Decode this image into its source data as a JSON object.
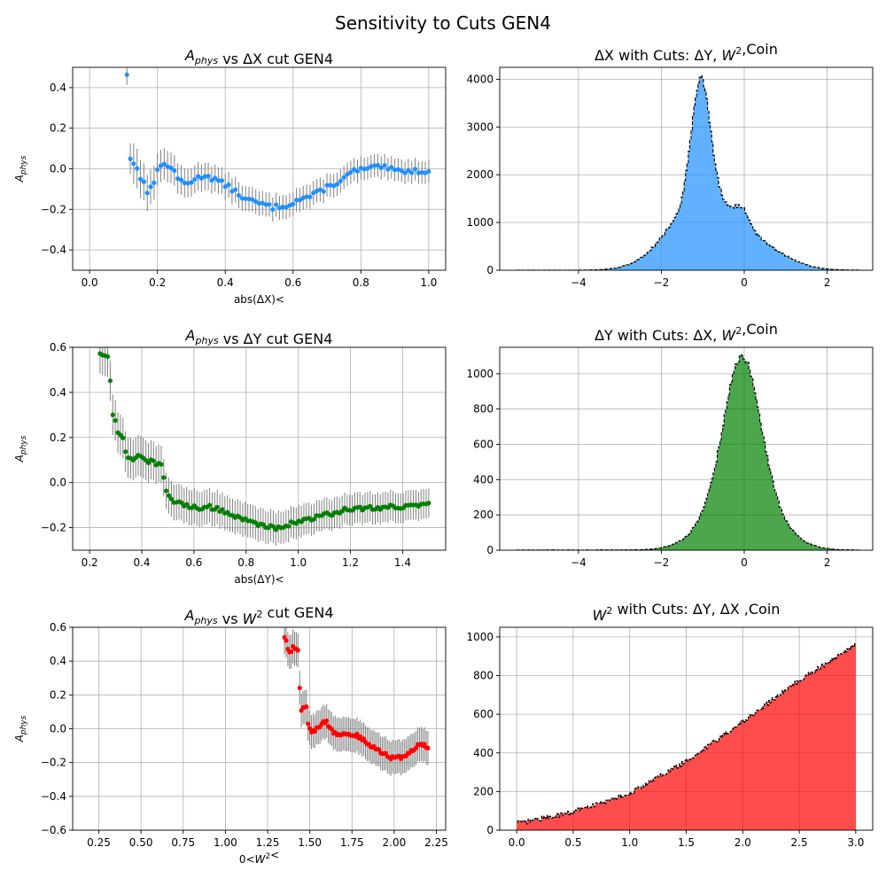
{
  "figure": {
    "title": "Sensitivity to Cuts GEN4"
  },
  "chart_data": [
    {
      "id": "aphys-vs-dx",
      "type": "scatter",
      "title": "A_phys vs ΔX cut GEN4",
      "xlabel": "abs(ΔX)<",
      "ylabel": "A_phys",
      "xlim": [
        -0.05,
        1.05
      ],
      "ylim": [
        -0.5,
        0.5
      ],
      "xticks": [
        0.0,
        0.2,
        0.4,
        0.6,
        0.8,
        1.0
      ],
      "xtick_labels": [
        "0.0",
        "0.2",
        "0.4",
        "0.6",
        "0.8",
        "1.0"
      ],
      "yticks": [
        -0.4,
        -0.2,
        0.0,
        0.2,
        0.4
      ],
      "ytick_labels": [
        "−0.4",
        "−0.2",
        "0.0",
        "0.2",
        "0.4"
      ],
      "grid": true,
      "color": "#1e90ff",
      "errorbar_color": "#808080",
      "x_range": [
        0.11,
        1.0
      ],
      "n_points": 90,
      "y_knots": [
        [
          0.11,
          0.47
        ],
        [
          0.115,
          0.28
        ],
        [
          0.12,
          0.05
        ],
        [
          0.125,
          -0.06
        ],
        [
          0.13,
          0.02
        ],
        [
          0.14,
          0.01
        ],
        [
          0.15,
          -0.04
        ],
        [
          0.16,
          -0.06
        ],
        [
          0.17,
          -0.13
        ],
        [
          0.18,
          -0.09
        ],
        [
          0.19,
          -0.06
        ],
        [
          0.2,
          0.0
        ],
        [
          0.22,
          0.02
        ],
        [
          0.24,
          0.01
        ],
        [
          0.26,
          -0.05
        ],
        [
          0.28,
          -0.07
        ],
        [
          0.3,
          -0.06
        ],
        [
          0.34,
          -0.03
        ],
        [
          0.38,
          -0.06
        ],
        [
          0.42,
          -0.1
        ],
        [
          0.46,
          -0.15
        ],
        [
          0.5,
          -0.17
        ],
        [
          0.54,
          -0.19
        ],
        [
          0.58,
          -0.18
        ],
        [
          0.62,
          -0.15
        ],
        [
          0.66,
          -0.13
        ],
        [
          0.7,
          -0.09
        ],
        [
          0.74,
          -0.06
        ],
        [
          0.78,
          -0.01
        ],
        [
          0.82,
          0.0
        ],
        [
          0.86,
          0.01
        ],
        [
          0.9,
          -0.01
        ],
        [
          0.94,
          -0.01
        ],
        [
          1.0,
          -0.01
        ]
      ],
      "err_knots": [
        [
          0.11,
          0.05
        ],
        [
          0.13,
          0.1
        ],
        [
          0.2,
          0.08
        ],
        [
          0.3,
          0.07
        ],
        [
          0.5,
          0.06
        ],
        [
          1.0,
          0.055
        ]
      ],
      "jitter": 0.012
    },
    {
      "id": "dx-hist",
      "type": "area",
      "title": "ΔX with Cuts: ΔY, W²,Coin",
      "xlim": [
        -5.9,
        3.1
      ],
      "ylim": [
        0,
        4250
      ],
      "xticks": [
        -4,
        -2,
        0,
        2
      ],
      "xtick_labels": [
        "−4",
        "−2",
        "0",
        "2"
      ],
      "yticks": [
        0,
        1000,
        2000,
        3000,
        4000
      ],
      "ytick_labels": [
        "0",
        "1000",
        "2000",
        "3000",
        "4000"
      ],
      "grid": true,
      "color": "#1e90ff",
      "fill_opacity": 0.7,
      "x_range": [
        -5.5,
        2.8
      ],
      "n_bins": 250,
      "components": [
        {
          "amp": 2500,
          "mu": -1.05,
          "sigma": 0.22
        },
        {
          "amp": 1500,
          "mu": -1.0,
          "sigma": 0.8
        },
        {
          "amp": 300,
          "mu": -0.05,
          "sigma": 0.15
        },
        {
          "amp": 350,
          "mu": 0.4,
          "sigma": 0.7
        }
      ],
      "jitter": 25
    },
    {
      "id": "aphys-vs-dy",
      "type": "scatter",
      "title": "A_phys vs ΔY cut GEN4",
      "xlabel": "abs(ΔY)<",
      "ylabel": "A_phys",
      "xlim": [
        0.135,
        1.565
      ],
      "ylim": [
        -0.3,
        0.6
      ],
      "xticks": [
        0.2,
        0.4,
        0.6,
        0.8,
        1.0,
        1.2,
        1.4
      ],
      "xtick_labels": [
        "0.2",
        "0.4",
        "0.6",
        "0.8",
        "1.0",
        "1.2",
        "1.4"
      ],
      "yticks": [
        -0.2,
        0.0,
        0.2,
        0.4,
        0.6
      ],
      "ytick_labels": [
        "−0.2",
        "0.0",
        "0.2",
        "0.4",
        "0.6"
      ],
      "grid": true,
      "color": "#008000",
      "errorbar_color": "#808080",
      "x_range": [
        0.24,
        1.5
      ],
      "n_points": 130,
      "y_knots": [
        [
          0.24,
          0.575
        ],
        [
          0.25,
          0.575
        ],
        [
          0.26,
          0.57
        ],
        [
          0.27,
          0.56
        ],
        [
          0.28,
          0.44
        ],
        [
          0.29,
          0.28
        ],
        [
          0.3,
          0.27
        ],
        [
          0.31,
          0.21
        ],
        [
          0.32,
          0.22
        ],
        [
          0.33,
          0.2
        ],
        [
          0.34,
          0.11
        ],
        [
          0.36,
          0.1
        ],
        [
          0.38,
          0.12
        ],
        [
          0.4,
          0.12
        ],
        [
          0.42,
          0.1
        ],
        [
          0.46,
          0.08
        ],
        [
          0.48,
          0.07
        ],
        [
          0.49,
          -0.04
        ],
        [
          0.52,
          -0.08
        ],
        [
          0.56,
          -0.1
        ],
        [
          0.62,
          -0.11
        ],
        [
          0.68,
          -0.11
        ],
        [
          0.74,
          -0.14
        ],
        [
          0.8,
          -0.17
        ],
        [
          0.86,
          -0.19
        ],
        [
          0.92,
          -0.2
        ],
        [
          0.98,
          -0.18
        ],
        [
          1.04,
          -0.16
        ],
        [
          1.12,
          -0.14
        ],
        [
          1.18,
          -0.12
        ],
        [
          1.24,
          -0.115
        ],
        [
          1.3,
          -0.11
        ],
        [
          1.4,
          -0.105
        ],
        [
          1.5,
          -0.1
        ]
      ],
      "err_knots": [
        [
          0.24,
          0.09
        ],
        [
          0.4,
          0.09
        ],
        [
          0.5,
          0.08
        ],
        [
          1.0,
          0.07
        ],
        [
          1.5,
          0.065
        ]
      ],
      "jitter": 0.01
    },
    {
      "id": "dy-hist",
      "type": "area",
      "title": "ΔY with Cuts: ΔX, W²,Coin",
      "xlim": [
        -5.9,
        3.1
      ],
      "ylim": [
        0,
        1150
      ],
      "xticks": [
        -4,
        -2,
        0,
        2
      ],
      "xtick_labels": [
        "−4",
        "−2",
        "0",
        "2"
      ],
      "yticks": [
        0,
        200,
        400,
        600,
        800,
        1000
      ],
      "ytick_labels": [
        "0",
        "200",
        "400",
        "600",
        "800",
        "1000"
      ],
      "grid": true,
      "color": "#008000",
      "fill_opacity": 0.7,
      "x_range": [
        -5.5,
        2.8
      ],
      "n_bins": 250,
      "components": [
        {
          "amp": 720,
          "mu": -0.05,
          "sigma": 0.42
        },
        {
          "amp": 380,
          "mu": -0.05,
          "sigma": 0.75
        }
      ],
      "jitter": 12
    },
    {
      "id": "aphys-vs-w2",
      "type": "scatter",
      "title": "A_phys vs W² cut GEN4",
      "xlabel": "0<W²<",
      "ylabel": "A_phys",
      "xlim": [
        0.095,
        2.305
      ],
      "ylim": [
        -0.6,
        0.6
      ],
      "xticks": [
        0.25,
        0.5,
        0.75,
        1.0,
        1.25,
        1.5,
        1.75,
        2.0,
        2.25
      ],
      "xtick_labels": [
        "0.25",
        "0.50",
        "0.75",
        "1.00",
        "1.25",
        "1.50",
        "1.75",
        "2.00",
        "2.25"
      ],
      "yticks": [
        -0.6,
        -0.4,
        -0.2,
        0.0,
        0.2,
        0.4,
        0.6
      ],
      "ytick_labels": [
        "−0.6",
        "−0.4",
        "−0.2",
        "0.0",
        "0.2",
        "0.4",
        "0.6"
      ],
      "grid": true,
      "color": "#ff0000",
      "errorbar_color": "#808080",
      "x_range": [
        1.35,
        2.2
      ],
      "n_points": 86,
      "y_knots": [
        [
          1.35,
          0.54
        ],
        [
          1.36,
          0.52
        ],
        [
          1.37,
          0.47
        ],
        [
          1.38,
          0.45
        ],
        [
          1.4,
          0.48
        ],
        [
          1.42,
          0.47
        ],
        [
          1.43,
          0.47
        ],
        [
          1.44,
          0.25
        ],
        [
          1.45,
          0.1
        ],
        [
          1.46,
          0.12
        ],
        [
          1.48,
          0.14
        ],
        [
          1.49,
          0.03
        ],
        [
          1.5,
          0.0
        ],
        [
          1.52,
          -0.02
        ],
        [
          1.55,
          0.01
        ],
        [
          1.58,
          0.04
        ],
        [
          1.6,
          0.04
        ],
        [
          1.63,
          -0.01
        ],
        [
          1.66,
          -0.04
        ],
        [
          1.7,
          -0.03
        ],
        [
          1.74,
          -0.04
        ],
        [
          1.78,
          -0.04
        ],
        [
          1.82,
          -0.07
        ],
        [
          1.86,
          -0.1
        ],
        [
          1.9,
          -0.12
        ],
        [
          1.94,
          -0.15
        ],
        [
          1.98,
          -0.17
        ],
        [
          2.02,
          -0.17
        ],
        [
          2.06,
          -0.17
        ],
        [
          2.1,
          -0.13
        ],
        [
          2.14,
          -0.1
        ],
        [
          2.18,
          -0.09
        ],
        [
          2.2,
          -0.12
        ]
      ],
      "err_knots": [
        [
          1.35,
          0.1
        ],
        [
          1.5,
          0.1
        ],
        [
          2.2,
          0.1
        ]
      ],
      "jitter": 0.01
    },
    {
      "id": "w2-hist",
      "type": "area",
      "title": "W² with Cuts: ΔY, ΔX ,Coin",
      "xlim": [
        -0.15,
        3.15
      ],
      "ylim": [
        0,
        1050
      ],
      "xticks": [
        0.0,
        0.5,
        1.0,
        1.5,
        2.0,
        2.5,
        3.0
      ],
      "xtick_labels": [
        "0.0",
        "0.5",
        "1.0",
        "1.5",
        "2.0",
        "2.5",
        "3.0"
      ],
      "yticks": [
        0,
        200,
        400,
        600,
        800,
        1000
      ],
      "ytick_labels": [
        "0",
        "200",
        "400",
        "600",
        "800",
        "1000"
      ],
      "grid": true,
      "color": "#ff0000",
      "fill_opacity": 0.7,
      "x_range": [
        0.0,
        3.0
      ],
      "n_bins": 300,
      "y_knots": [
        [
          0.0,
          40
        ],
        [
          0.05,
          38
        ],
        [
          0.1,
          45
        ],
        [
          0.5,
          95
        ],
        [
          1.0,
          190
        ],
        [
          1.5,
          355
        ],
        [
          2.0,
          560
        ],
        [
          2.5,
          775
        ],
        [
          2.85,
          900
        ],
        [
          3.0,
          960
        ]
      ],
      "jitter": 12
    }
  ]
}
